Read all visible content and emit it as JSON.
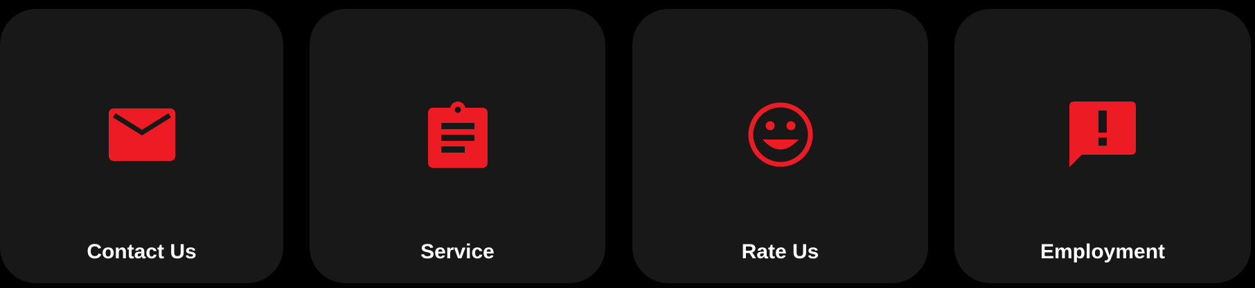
{
  "theme": {
    "background": "#000000",
    "card_background": "#181818",
    "accent": "#ED1C24",
    "label_color": "#FFFFFF"
  },
  "cards": [
    {
      "label": "Contact Us",
      "icon": "envelope-icon"
    },
    {
      "label": "Service",
      "icon": "clipboard-icon"
    },
    {
      "label": "Rate Us",
      "icon": "smiley-icon"
    },
    {
      "label": "Employment",
      "icon": "feedback-exclamation-icon"
    }
  ]
}
